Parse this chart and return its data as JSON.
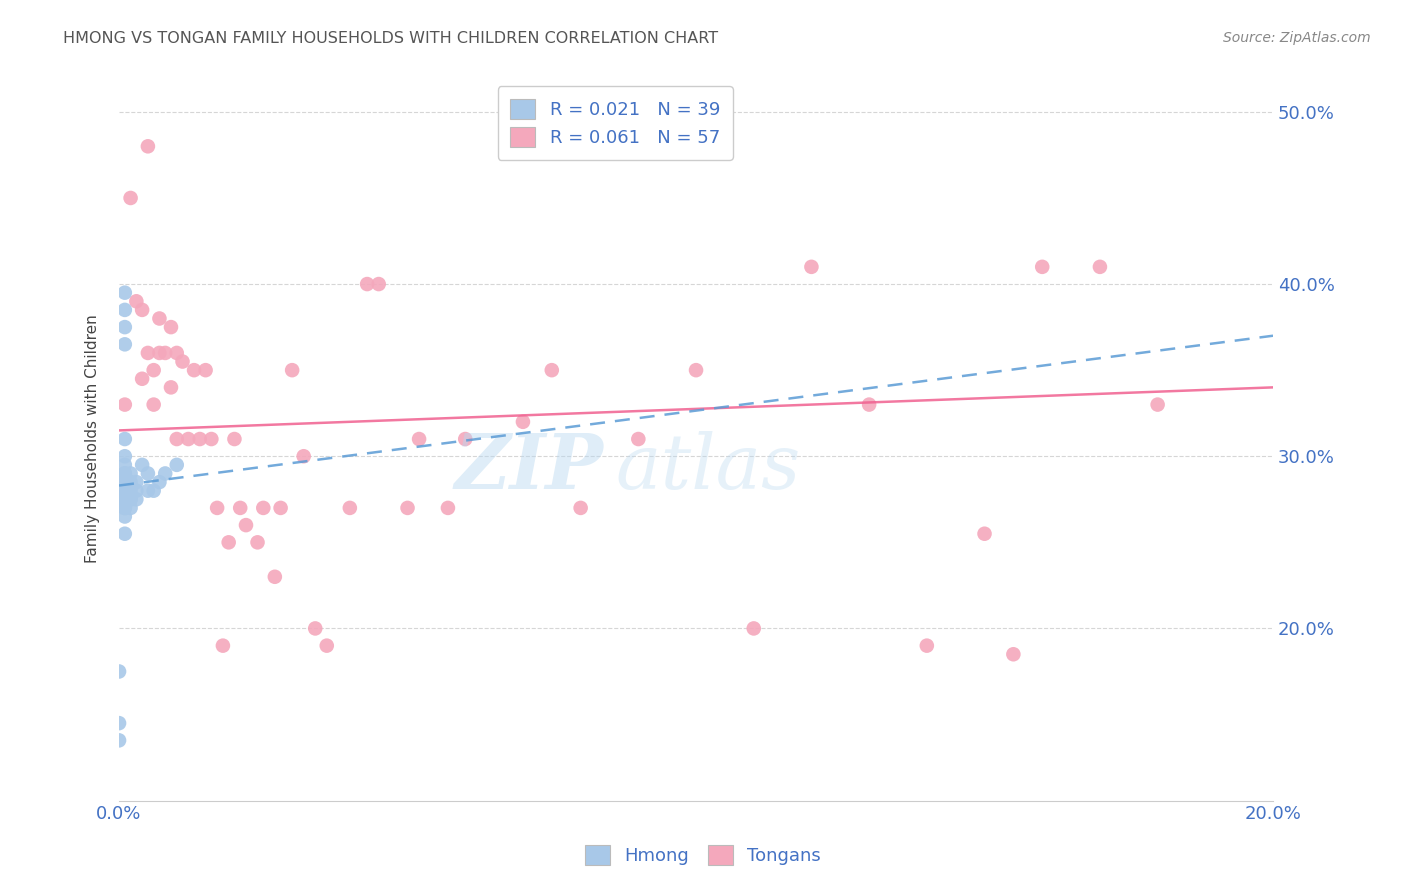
{
  "title": "HMONG VS TONGAN FAMILY HOUSEHOLDS WITH CHILDREN CORRELATION CHART",
  "source": "Source: ZipAtlas.com",
  "ylabel": "Family Households with Children",
  "hmong_color": "#a8c8e8",
  "tongan_color": "#f4a8bc",
  "hmong_line_color": "#5b9bd5",
  "tongan_line_color": "#f06090",
  "watermark_top": "ZIP",
  "watermark_bot": "atlas",
  "background_color": "#ffffff",
  "grid_color": "#cccccc",
  "title_color": "#555555",
  "axis_label_color": "#4472c4",
  "xlim": [
    0.0,
    0.2
  ],
  "ylim": [
    0.1,
    0.52
  ],
  "y_ticks": [
    0.2,
    0.3,
    0.4,
    0.5
  ],
  "x_ticks": [
    0.0,
    0.025,
    0.05,
    0.075,
    0.1,
    0.125,
    0.15,
    0.175,
    0.2
  ],
  "hmong_x": [
    0.0,
    0.0,
    0.0,
    0.001,
    0.001,
    0.001,
    0.001,
    0.001,
    0.001,
    0.001,
    0.001,
    0.001,
    0.001,
    0.001,
    0.001,
    0.001,
    0.001,
    0.001,
    0.001,
    0.001,
    0.001,
    0.001,
    0.001,
    0.002,
    0.002,
    0.002,
    0.002,
    0.002,
    0.002,
    0.003,
    0.003,
    0.003,
    0.004,
    0.005,
    0.005,
    0.006,
    0.007,
    0.008,
    0.01
  ],
  "hmong_y": [
    0.145,
    0.135,
    0.175,
    0.395,
    0.385,
    0.375,
    0.365,
    0.31,
    0.295,
    0.285,
    0.275,
    0.265,
    0.255,
    0.3,
    0.285,
    0.275,
    0.29,
    0.28,
    0.27,
    0.29,
    0.28,
    0.275,
    0.27,
    0.29,
    0.285,
    0.275,
    0.28,
    0.275,
    0.27,
    0.28,
    0.285,
    0.275,
    0.295,
    0.29,
    0.28,
    0.28,
    0.285,
    0.29,
    0.295
  ],
  "tongan_x": [
    0.001,
    0.002,
    0.003,
    0.004,
    0.004,
    0.005,
    0.005,
    0.006,
    0.006,
    0.007,
    0.007,
    0.008,
    0.009,
    0.009,
    0.01,
    0.01,
    0.011,
    0.012,
    0.013,
    0.014,
    0.015,
    0.016,
    0.017,
    0.018,
    0.019,
    0.02,
    0.021,
    0.022,
    0.024,
    0.025,
    0.027,
    0.028,
    0.03,
    0.032,
    0.034,
    0.036,
    0.04,
    0.043,
    0.045,
    0.05,
    0.052,
    0.057,
    0.06,
    0.07,
    0.075,
    0.08,
    0.09,
    0.1,
    0.11,
    0.12,
    0.13,
    0.14,
    0.15,
    0.155,
    0.16,
    0.17,
    0.18
  ],
  "tongan_y": [
    0.33,
    0.45,
    0.39,
    0.385,
    0.345,
    0.48,
    0.36,
    0.35,
    0.33,
    0.38,
    0.36,
    0.36,
    0.375,
    0.34,
    0.36,
    0.31,
    0.355,
    0.31,
    0.35,
    0.31,
    0.35,
    0.31,
    0.27,
    0.19,
    0.25,
    0.31,
    0.27,
    0.26,
    0.25,
    0.27,
    0.23,
    0.27,
    0.35,
    0.3,
    0.2,
    0.19,
    0.27,
    0.4,
    0.4,
    0.27,
    0.31,
    0.27,
    0.31,
    0.32,
    0.35,
    0.27,
    0.31,
    0.35,
    0.2,
    0.41,
    0.33,
    0.19,
    0.255,
    0.185,
    0.41,
    0.41,
    0.33
  ],
  "hmong_line_x": [
    0.0,
    0.2
  ],
  "hmong_line_y": [
    0.283,
    0.37
  ],
  "tongan_line_x": [
    0.0,
    0.2
  ],
  "tongan_line_y": [
    0.315,
    0.34
  ]
}
